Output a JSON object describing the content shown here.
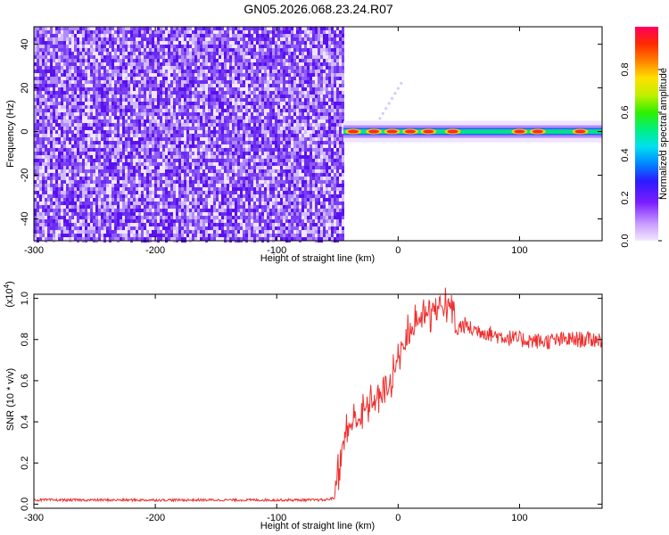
{
  "title": "GN05.2026.068.23.24.R07",
  "colors": {
    "noise": "#6a2cf0",
    "signal_line": "#ef3030",
    "axis": "#000000",
    "background": "#ffffff"
  },
  "chart_data": [
    {
      "type": "heatmap",
      "xlabel": "Height of straight line (km)",
      "ylabel": "Frequency (Hz)",
      "xlim": [
        -300,
        168
      ],
      "ylim": [
        -50,
        48
      ],
      "xticks": [
        -300,
        -200,
        -100,
        0,
        100
      ],
      "yticks": [
        -40,
        -20,
        0,
        20,
        40
      ],
      "noise_region_x": [
        -300,
        -45
      ],
      "signal_band": {
        "x": [
          -45,
          168
        ],
        "center_frequency": 0,
        "peaks_x": [
          -37,
          -20,
          -5,
          10,
          25,
          45,
          100,
          115,
          150
        ]
      },
      "colorbar": {
        "label": "Normalized spectral amplitude",
        "range": [
          0,
          1
        ],
        "ticks": [
          "0.0",
          "0.2",
          "0.4",
          "0.6",
          "0.8"
        ],
        "tick_values": [
          0.0,
          0.2,
          0.4,
          0.6,
          0.8
        ]
      },
      "grid": false
    },
    {
      "type": "line",
      "xlabel": "Height of straight line (km)",
      "ylabel": "SNR (10 * v/v)",
      "scale_label_prefix": "(x10",
      "scale_label_exp": "4",
      "scale_label_suffix": ")",
      "xlim": [
        -300,
        168
      ],
      "ylim": [
        -0.02,
        1.02
      ],
      "xticks": [
        -300,
        -200,
        -100,
        0,
        100
      ],
      "yticks": [
        "0.0",
        "0.2",
        "0.4",
        "0.6",
        "0.8",
        "1.0"
      ],
      "ytick_values": [
        0.0,
        0.2,
        0.4,
        0.6,
        0.8,
        1.0
      ],
      "series": [
        {
          "x": [
            -300,
            -250,
            -200,
            -150,
            -100,
            -60,
            -53,
            -50,
            -45,
            -40,
            -35,
            -30,
            -25,
            -20,
            -15,
            -10,
            -5,
            0,
            5,
            10,
            15,
            20,
            25,
            30,
            35,
            40,
            45,
            48,
            50,
            55,
            60,
            70,
            80,
            100,
            120,
            140,
            160,
            168
          ],
          "y": [
            0.02,
            0.02,
            0.02,
            0.02,
            0.02,
            0.02,
            0.03,
            0.15,
            0.3,
            0.38,
            0.4,
            0.43,
            0.48,
            0.5,
            0.52,
            0.55,
            0.6,
            0.72,
            0.78,
            0.84,
            0.88,
            0.92,
            0.94,
            0.95,
            0.96,
            0.97,
            0.95,
            0.82,
            0.86,
            0.87,
            0.85,
            0.84,
            0.82,
            0.8,
            0.79,
            0.8,
            0.8,
            0.8
          ]
        }
      ],
      "grid": false
    }
  ]
}
